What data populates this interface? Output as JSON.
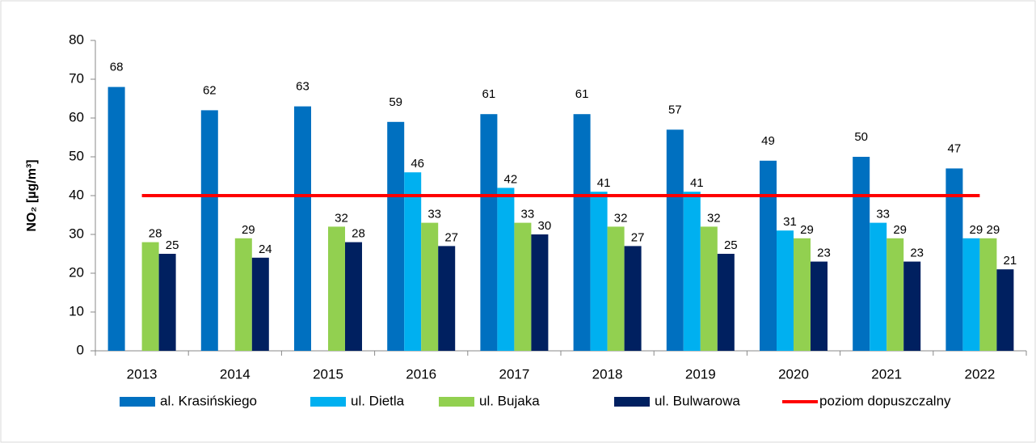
{
  "chart_data": {
    "type": "bar",
    "y_label": "NO₂ [µg/m³]",
    "categories": [
      "2013",
      "2014",
      "2015",
      "2016",
      "2017",
      "2018",
      "2019",
      "2020",
      "2021",
      "2022"
    ],
    "series": [
      {
        "name": "al. Krasińskiego",
        "color": "#0070c0",
        "values": [
          68,
          62,
          63,
          59,
          61,
          61,
          57,
          49,
          50,
          47
        ]
      },
      {
        "name": "ul. Dietla",
        "color": "#00b0f0",
        "values": [
          null,
          null,
          null,
          46,
          42,
          41,
          41,
          31,
          33,
          29
        ]
      },
      {
        "name": "ul. Bujaka",
        "color": "#92d050",
        "values": [
          28,
          29,
          32,
          33,
          33,
          32,
          32,
          29,
          29,
          29
        ]
      },
      {
        "name": "ul. Bulwarowa",
        "color": "#002060",
        "values": [
          25,
          24,
          28,
          27,
          30,
          27,
          25,
          23,
          23,
          21
        ]
      },
      {
        "name": "poziom dopuszczalny",
        "color": "#ff0000",
        "type": "line",
        "values": [
          40,
          40,
          40,
          40,
          40,
          40,
          40,
          40,
          40,
          40
        ]
      }
    ],
    "ylim": [
      0,
      80
    ],
    "yticks": [
      0,
      10,
      20,
      30,
      40,
      50,
      60,
      70,
      80
    ],
    "grid": false,
    "legend": "bottom"
  }
}
